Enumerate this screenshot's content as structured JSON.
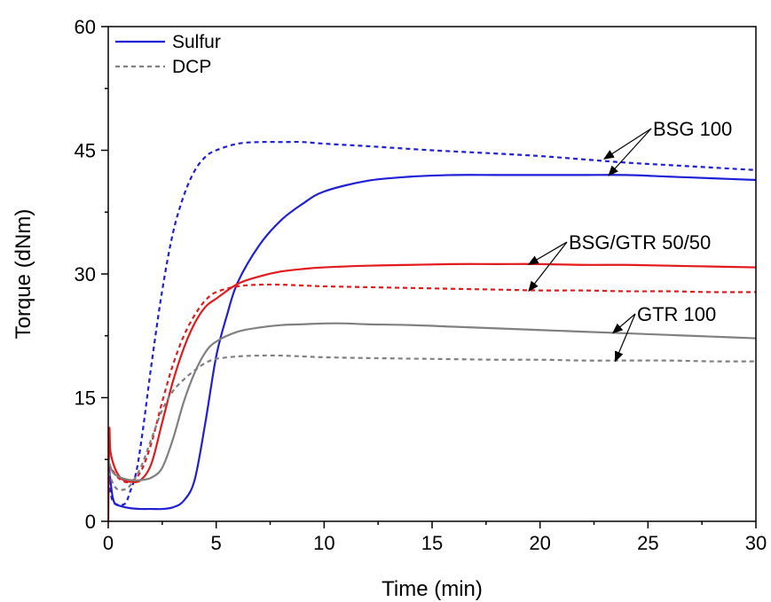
{
  "chart_data": {
    "type": "line",
    "title": "",
    "xlabel": "Time (min)",
    "ylabel": "Torque (dNm)",
    "xlim": [
      0,
      30
    ],
    "ylim": [
      0,
      60
    ],
    "xticks": [
      0,
      5,
      10,
      15,
      20,
      25,
      30
    ],
    "yticks": [
      0,
      15,
      30,
      45,
      60
    ],
    "grid": false,
    "legend": {
      "placement": "top-left",
      "entries": [
        {
          "label": "Sulfur",
          "color": "#1f1fd6",
          "style": "solid"
        },
        {
          "label": "DCP",
          "color": "#808080",
          "style": "dashed"
        }
      ]
    },
    "series": [
      {
        "name": "Sulfur",
        "sample": "BSG 100",
        "color": "#1f1fd6",
        "style": "solid",
        "x": [
          0,
          0.1,
          0.2,
          0.3,
          0.5,
          1,
          1.5,
          2,
          2.5,
          3,
          3.5,
          4,
          4.5,
          5,
          5.5,
          6,
          7,
          8,
          9,
          10,
          12,
          14,
          16,
          18,
          20,
          22,
          24,
          26,
          28,
          30
        ],
        "y": [
          7.5,
          5,
          3,
          2.2,
          1.9,
          1.6,
          1.5,
          1.5,
          1.5,
          1.7,
          2.5,
          5,
          12,
          20,
          25,
          29,
          33.5,
          36.5,
          38.5,
          40,
          41.3,
          41.8,
          42.0,
          42.0,
          42.0,
          42.0,
          42.0,
          41.8,
          41.6,
          41.4
        ]
      },
      {
        "name": "DCP",
        "sample": "BSG 100",
        "color": "#1f1fd6",
        "style": "dashed",
        "x": [
          0,
          0.2,
          0.5,
          0.8,
          1,
          1.3,
          1.6,
          2,
          2.5,
          3,
          3.5,
          4,
          4.5,
          5,
          6,
          7,
          8,
          9,
          10,
          12,
          15,
          18,
          20,
          22,
          24,
          26,
          28,
          30
        ],
        "y": [
          5,
          2.5,
          2.0,
          2.2,
          3.5,
          6,
          11,
          19,
          28,
          35,
          39.5,
          42.5,
          44.2,
          45,
          45.8,
          46.0,
          46.0,
          46.0,
          45.8,
          45.5,
          45.0,
          44.6,
          44.3,
          43.9,
          43.5,
          43.2,
          42.9,
          42.6
        ]
      },
      {
        "name": "Sulfur",
        "sample": "BSG/GTR 50/50",
        "color": "#e31a1c",
        "style": "solid",
        "x": [
          0,
          0.05,
          0.1,
          0.3,
          0.6,
          1,
          1.5,
          2,
          2.5,
          3,
          3.5,
          4,
          4.5,
          5,
          6,
          7,
          8,
          9,
          10,
          12,
          14,
          16,
          18,
          20,
          22,
          24,
          26,
          28,
          30
        ],
        "y": [
          0,
          11,
          8.5,
          6.5,
          5.2,
          4.8,
          5.0,
          7,
          12,
          17,
          21,
          24,
          26,
          27,
          28.8,
          29.7,
          30.3,
          30.6,
          30.8,
          31.0,
          31.1,
          31.2,
          31.2,
          31.2,
          31.1,
          31.1,
          31.0,
          30.9,
          30.8
        ]
      },
      {
        "name": "DCP",
        "sample": "BSG/GTR 50/50",
        "color": "#e31a1c",
        "style": "dashed",
        "x": [
          0,
          0.3,
          0.6,
          1,
          1.5,
          2,
          2.5,
          3,
          3.5,
          4,
          4.5,
          5,
          6,
          7,
          8,
          9,
          10,
          12,
          14,
          16,
          18,
          20,
          22,
          24,
          26,
          28,
          30
        ],
        "y": [
          7,
          5.8,
          5.0,
          4.8,
          6,
          9.5,
          14.5,
          19,
          22.5,
          25,
          26.8,
          27.8,
          28.5,
          28.7,
          28.7,
          28.6,
          28.5,
          28.4,
          28.3,
          28.2,
          28.1,
          28.0,
          28.0,
          27.9,
          27.9,
          27.8,
          27.8
        ]
      },
      {
        "name": "Sulfur",
        "sample": "GTR 100",
        "color": "#808080",
        "style": "solid",
        "x": [
          0,
          0.2,
          0.5,
          1,
          1.5,
          2,
          2.5,
          3,
          3.5,
          4,
          4.5,
          5,
          6,
          7,
          8,
          9,
          10,
          11,
          12,
          14,
          16,
          18,
          20,
          22,
          24,
          26,
          28,
          30
        ],
        "y": [
          7.5,
          6,
          5.4,
          5.0,
          5.0,
          5.3,
          6.5,
          10,
          14.5,
          18,
          20.5,
          21.8,
          23,
          23.5,
          23.8,
          23.9,
          24.0,
          24.0,
          23.9,
          23.8,
          23.6,
          23.4,
          23.2,
          23.0,
          22.8,
          22.6,
          22.4,
          22.2
        ]
      },
      {
        "name": "DCP",
        "sample": "GTR 100",
        "color": "#808080",
        "style": "dashed",
        "x": [
          0,
          0.3,
          0.6,
          1,
          1.5,
          2,
          2.5,
          3,
          3.5,
          4,
          4.5,
          5,
          6,
          7,
          8,
          9,
          10,
          12,
          15,
          18,
          20,
          22,
          24,
          26,
          28,
          30
        ],
        "y": [
          6,
          4.2,
          3.8,
          4.3,
          6.5,
          10,
          13.5,
          15.8,
          17.2,
          18.3,
          19.2,
          19.7,
          20.0,
          20.1,
          20.1,
          20.0,
          19.9,
          19.8,
          19.7,
          19.6,
          19.6,
          19.5,
          19.5,
          19.5,
          19.4,
          19.4
        ]
      }
    ],
    "annotations": [
      {
        "text": "BSG 100",
        "targets": [
          [
            23,
            44.0
          ],
          [
            23.2,
            42.0
          ]
        ]
      },
      {
        "text": "BSG/GTR 50/50",
        "targets": [
          [
            19.5,
            31.2
          ],
          [
            19.5,
            28.0
          ]
        ]
      },
      {
        "text": "GTR 100",
        "targets": [
          [
            23.4,
            22.9
          ],
          [
            23.5,
            19.5
          ]
        ]
      }
    ]
  }
}
